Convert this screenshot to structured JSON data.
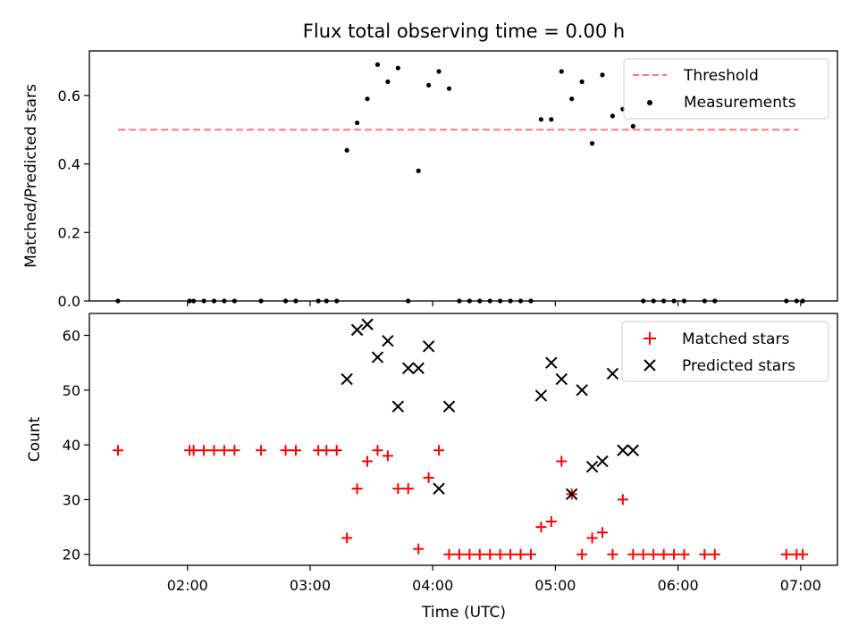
{
  "title": "Flux total observing time = 0.00 h",
  "colors": {
    "threshold": "#ff7777",
    "measurements": "#000000",
    "matched": "#ff0000",
    "predicted": "#000000"
  },
  "chart_data": [
    {
      "type": "scatter",
      "panel": "top",
      "ylabel": "Matched/Predicted stars",
      "xlabel": "",
      "xlim": [
        "01:12",
        "07:18"
      ],
      "ylim": [
        0,
        0.73
      ],
      "y_ticks": [
        "0.0",
        "0.2",
        "0.4",
        "0.6"
      ],
      "x_ticks": [
        "02:00",
        "03:00",
        "04:00",
        "05:00",
        "06:00",
        "07:00"
      ],
      "legend_position": "top-right",
      "threshold": {
        "name": "Threshold",
        "style": "dashed",
        "x": [
          "01:26",
          "06:59"
        ],
        "y": 0.5
      },
      "series": [
        {
          "name": "Measurements",
          "x": [
            "01:26",
            "02:01",
            "02:03",
            "02:08",
            "02:13",
            "02:18",
            "02:23",
            "02:36",
            "02:48",
            "02:53",
            "03:04",
            "03:08",
            "03:13",
            "03:18",
            "03:23",
            "03:28",
            "03:33",
            "03:38",
            "03:43",
            "03:48",
            "03:53",
            "03:58",
            "04:03",
            "04:08",
            "04:13",
            "04:18",
            "04:23",
            "04:28",
            "04:33",
            "04:38",
            "04:43",
            "04:48",
            "04:53",
            "04:58",
            "05:03",
            "05:08",
            "05:13",
            "05:18",
            "05:23",
            "05:28",
            "05:33",
            "05:38",
            "05:43",
            "05:48",
            "05:53",
            "05:58",
            "06:03",
            "06:13",
            "06:18",
            "06:53",
            "06:58",
            "07:01"
          ],
          "y": [
            0,
            0,
            0,
            0,
            0,
            0,
            0,
            0,
            0,
            0,
            0,
            0,
            0,
            0.44,
            0.52,
            0.59,
            0.69,
            0.64,
            0.68,
            0,
            0.38,
            0.63,
            0.67,
            0.62,
            0,
            0,
            0,
            0,
            0,
            0,
            0,
            0,
            0.53,
            0.53,
            0.67,
            0.59,
            0.64,
            0.46,
            0.66,
            0.54,
            0.56,
            0.51,
            0,
            0,
            0,
            0,
            0,
            0,
            0,
            0,
            0,
            0
          ]
        }
      ]
    },
    {
      "type": "scatter",
      "panel": "bottom",
      "ylabel": "Count",
      "xlabel": "Time (UTC)",
      "xlim": [
        "01:12",
        "07:18"
      ],
      "ylim": [
        18,
        64
      ],
      "y_ticks": [
        "20",
        "30",
        "40",
        "50",
        "60"
      ],
      "x_ticks": [
        "02:00",
        "03:00",
        "04:00",
        "05:00",
        "06:00",
        "07:00"
      ],
      "legend_position": "top-right",
      "series": [
        {
          "name": "Matched stars",
          "marker": "+",
          "x": [
            "01:26",
            "02:01",
            "02:03",
            "02:08",
            "02:13",
            "02:18",
            "02:23",
            "02:36",
            "02:48",
            "02:53",
            "03:04",
            "03:08",
            "03:13",
            "03:18",
            "03:23",
            "03:28",
            "03:33",
            "03:38",
            "03:43",
            "03:48",
            "03:53",
            "03:58",
            "04:03",
            "04:08",
            "04:13",
            "04:18",
            "04:23",
            "04:28",
            "04:33",
            "04:38",
            "04:43",
            "04:48",
            "04:53",
            "04:58",
            "05:03",
            "05:08",
            "05:13",
            "05:18",
            "05:23",
            "05:28",
            "05:33",
            "05:38",
            "05:43",
            "05:48",
            "05:53",
            "05:58",
            "06:03",
            "06:13",
            "06:18",
            "06:53",
            "06:58",
            "07:01"
          ],
          "y": [
            39,
            39,
            39,
            39,
            39,
            39,
            39,
            39,
            39,
            39,
            39,
            39,
            39,
            23,
            32,
            37,
            39,
            38,
            32,
            32,
            21,
            34,
            39,
            20,
            20,
            20,
            20,
            20,
            20,
            20,
            20,
            20,
            25,
            26,
            37,
            31,
            20,
            23,
            24,
            20,
            30,
            20,
            20,
            20,
            20,
            20,
            20,
            20,
            20,
            20,
            20,
            20
          ]
        },
        {
          "name": "Predicted stars",
          "marker": "x",
          "x": [
            "03:18",
            "03:23",
            "03:28",
            "03:33",
            "03:38",
            "03:43",
            "03:48",
            "03:53",
            "03:58",
            "04:03",
            "04:08",
            "04:53",
            "04:58",
            "05:03",
            "05:08",
            "05:13",
            "05:18",
            "05:23",
            "05:28",
            "05:33",
            "05:38"
          ],
          "y": [
            52,
            61,
            62,
            56,
            59,
            47,
            54,
            54,
            58,
            32,
            47,
            49,
            55,
            52,
            31,
            50,
            36,
            37,
            53,
            39,
            39
          ]
        }
      ]
    }
  ]
}
